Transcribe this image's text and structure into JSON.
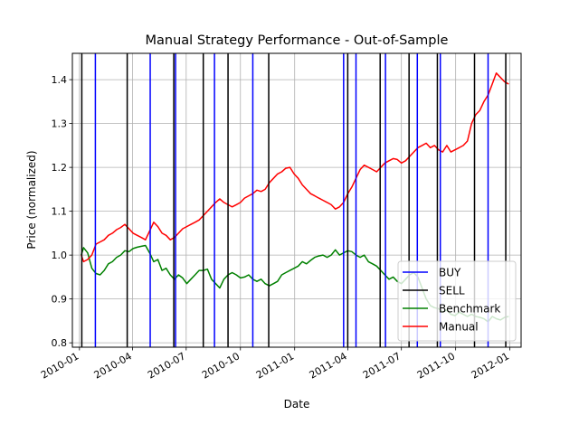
{
  "chart_data": {
    "type": "line",
    "title": "Manual Strategy Performance - Out-of-Sample",
    "xlabel": "Date",
    "ylabel": "Price (normalized)",
    "xlim": [
      "2009-12-20",
      "2012-01-20"
    ],
    "ylim": [
      0.79,
      1.46
    ],
    "grid": true,
    "legend_position": "lower-right",
    "x_ticks": [
      {
        "date": "2010-01-01",
        "label": "2010-01"
      },
      {
        "date": "2010-04-01",
        "label": "2010-04"
      },
      {
        "date": "2010-07-01",
        "label": "2010-07"
      },
      {
        "date": "2010-10-01",
        "label": "2010-10"
      },
      {
        "date": "2011-01-01",
        "label": "2011-01"
      },
      {
        "date": "2011-04-01",
        "label": "2011-04"
      },
      {
        "date": "2011-07-01",
        "label": "2011-07"
      },
      {
        "date": "2011-10-01",
        "label": "2011-10"
      },
      {
        "date": "2012-01-01",
        "label": "2012-01"
      }
    ],
    "y_ticks": [
      {
        "value": 0.8,
        "label": "0.8"
      },
      {
        "value": 0.9,
        "label": "0.9"
      },
      {
        "value": 1.0,
        "label": "1.0"
      },
      {
        "value": 1.1,
        "label": "1.1"
      },
      {
        "value": 1.2,
        "label": "1.2"
      },
      {
        "value": 1.3,
        "label": "1.3"
      },
      {
        "value": 1.4,
        "label": "1.4"
      }
    ],
    "buy_dates": [
      "2010-01-28",
      "2010-05-01",
      "2010-06-13",
      "2010-08-18",
      "2010-10-22",
      "2011-03-25",
      "2011-04-15",
      "2011-06-04",
      "2011-07-28",
      "2011-09-05",
      "2011-11-25"
    ],
    "sell_dates": [
      "2010-01-05",
      "2010-03-23",
      "2010-06-10",
      "2010-07-30",
      "2010-09-10",
      "2010-11-18",
      "2011-04-01",
      "2011-05-26",
      "2011-07-14",
      "2011-08-31",
      "2011-11-02",
      "2011-12-25"
    ],
    "series": [
      {
        "name": "Benchmark",
        "color": "#008000",
        "points": [
          [
            "2010-01-04",
            1.0
          ],
          [
            "2010-01-08",
            1.017
          ],
          [
            "2010-01-15",
            1.005
          ],
          [
            "2010-01-22",
            0.97
          ],
          [
            "2010-01-29",
            0.958
          ],
          [
            "2010-02-05",
            0.955
          ],
          [
            "2010-02-12",
            0.965
          ],
          [
            "2010-02-19",
            0.98
          ],
          [
            "2010-02-26",
            0.985
          ],
          [
            "2010-03-05",
            0.995
          ],
          [
            "2010-03-12",
            1.0
          ],
          [
            "2010-03-19",
            1.01
          ],
          [
            "2010-03-26",
            1.008
          ],
          [
            "2010-04-02",
            1.015
          ],
          [
            "2010-04-09",
            1.018
          ],
          [
            "2010-04-16",
            1.02
          ],
          [
            "2010-04-23",
            1.022
          ],
          [
            "2010-04-30",
            1.005
          ],
          [
            "2010-05-07",
            0.985
          ],
          [
            "2010-05-14",
            0.99
          ],
          [
            "2010-05-21",
            0.965
          ],
          [
            "2010-05-28",
            0.97
          ],
          [
            "2010-06-04",
            0.955
          ],
          [
            "2010-06-11",
            0.945
          ],
          [
            "2010-06-18",
            0.955
          ],
          [
            "2010-06-25",
            0.948
          ],
          [
            "2010-07-02",
            0.935
          ],
          [
            "2010-07-09",
            0.945
          ],
          [
            "2010-07-16",
            0.955
          ],
          [
            "2010-07-23",
            0.965
          ],
          [
            "2010-07-30",
            0.965
          ],
          [
            "2010-08-06",
            0.968
          ],
          [
            "2010-08-13",
            0.945
          ],
          [
            "2010-08-20",
            0.935
          ],
          [
            "2010-08-27",
            0.925
          ],
          [
            "2010-09-03",
            0.945
          ],
          [
            "2010-09-10",
            0.955
          ],
          [
            "2010-09-17",
            0.96
          ],
          [
            "2010-09-24",
            0.955
          ],
          [
            "2010-10-01",
            0.948
          ],
          [
            "2010-10-08",
            0.95
          ],
          [
            "2010-10-15",
            0.955
          ],
          [
            "2010-10-22",
            0.945
          ],
          [
            "2010-10-29",
            0.94
          ],
          [
            "2010-11-05",
            0.945
          ],
          [
            "2010-11-12",
            0.935
          ],
          [
            "2010-11-19",
            0.93
          ],
          [
            "2010-11-26",
            0.935
          ],
          [
            "2010-12-03",
            0.94
          ],
          [
            "2010-12-10",
            0.955
          ],
          [
            "2010-12-17",
            0.96
          ],
          [
            "2010-12-24",
            0.965
          ],
          [
            "2010-12-31",
            0.97
          ],
          [
            "2011-01-07",
            0.975
          ],
          [
            "2011-01-14",
            0.985
          ],
          [
            "2011-01-21",
            0.98
          ],
          [
            "2011-01-28",
            0.988
          ],
          [
            "2011-02-04",
            0.995
          ],
          [
            "2011-02-11",
            0.998
          ],
          [
            "2011-02-18",
            1.0
          ],
          [
            "2011-02-25",
            0.995
          ],
          [
            "2011-03-04",
            1.0
          ],
          [
            "2011-03-11",
            1.012
          ],
          [
            "2011-03-18",
            1.0
          ],
          [
            "2011-03-25",
            1.005
          ],
          [
            "2011-04-01",
            1.01
          ],
          [
            "2011-04-08",
            1.008
          ],
          [
            "2011-04-15",
            1.0
          ],
          [
            "2011-04-22",
            0.995
          ],
          [
            "2011-04-29",
            1.0
          ],
          [
            "2011-05-06",
            0.985
          ],
          [
            "2011-05-13",
            0.98
          ],
          [
            "2011-05-20",
            0.975
          ],
          [
            "2011-05-27",
            0.965
          ],
          [
            "2011-06-03",
            0.955
          ],
          [
            "2011-06-10",
            0.945
          ],
          [
            "2011-06-17",
            0.95
          ],
          [
            "2011-06-24",
            0.94
          ],
          [
            "2011-07-01",
            0.935
          ],
          [
            "2011-07-08",
            0.945
          ],
          [
            "2011-07-15",
            0.955
          ],
          [
            "2011-07-22",
            0.96
          ],
          [
            "2011-07-29",
            0.95
          ],
          [
            "2011-08-05",
            0.925
          ],
          [
            "2011-08-12",
            0.9
          ],
          [
            "2011-08-19",
            0.885
          ],
          [
            "2011-08-26",
            0.88
          ],
          [
            "2011-09-02",
            0.878
          ],
          [
            "2011-09-09",
            0.87
          ],
          [
            "2011-09-16",
            0.875
          ],
          [
            "2011-09-23",
            0.865
          ],
          [
            "2011-09-30",
            0.862
          ],
          [
            "2011-10-07",
            0.87
          ],
          [
            "2011-10-14",
            0.865
          ],
          [
            "2011-10-21",
            0.86
          ],
          [
            "2011-10-28",
            0.865
          ],
          [
            "2011-11-04",
            0.86
          ],
          [
            "2011-11-11",
            0.858
          ],
          [
            "2011-11-18",
            0.855
          ],
          [
            "2011-11-25",
            0.848
          ],
          [
            "2011-12-02",
            0.86
          ],
          [
            "2011-12-09",
            0.855
          ],
          [
            "2011-12-16",
            0.852
          ],
          [
            "2011-12-23",
            0.858
          ],
          [
            "2011-12-30",
            0.86
          ]
        ]
      },
      {
        "name": "Manual",
        "color": "#ff0000",
        "points": [
          [
            "2010-01-04",
            1.0
          ],
          [
            "2010-01-08",
            0.985
          ],
          [
            "2010-01-15",
            0.99
          ],
          [
            "2010-01-22",
            1.0
          ],
          [
            "2010-01-29",
            1.025
          ],
          [
            "2010-02-05",
            1.03
          ],
          [
            "2010-02-12",
            1.035
          ],
          [
            "2010-02-19",
            1.045
          ],
          [
            "2010-02-26",
            1.05
          ],
          [
            "2010-03-05",
            1.058
          ],
          [
            "2010-03-12",
            1.063
          ],
          [
            "2010-03-19",
            1.07
          ],
          [
            "2010-03-26",
            1.06
          ],
          [
            "2010-04-02",
            1.05
          ],
          [
            "2010-04-09",
            1.045
          ],
          [
            "2010-04-16",
            1.04
          ],
          [
            "2010-04-23",
            1.035
          ],
          [
            "2010-04-30",
            1.055
          ],
          [
            "2010-05-07",
            1.075
          ],
          [
            "2010-05-14",
            1.065
          ],
          [
            "2010-05-21",
            1.05
          ],
          [
            "2010-05-28",
            1.045
          ],
          [
            "2010-06-04",
            1.035
          ],
          [
            "2010-06-11",
            1.04
          ],
          [
            "2010-06-18",
            1.05
          ],
          [
            "2010-06-25",
            1.06
          ],
          [
            "2010-07-02",
            1.065
          ],
          [
            "2010-07-09",
            1.07
          ],
          [
            "2010-07-16",
            1.075
          ],
          [
            "2010-07-23",
            1.08
          ],
          [
            "2010-07-30",
            1.09
          ],
          [
            "2010-08-06",
            1.1
          ],
          [
            "2010-08-13",
            1.11
          ],
          [
            "2010-08-20",
            1.12
          ],
          [
            "2010-08-27",
            1.128
          ],
          [
            "2010-09-03",
            1.12
          ],
          [
            "2010-09-10",
            1.115
          ],
          [
            "2010-09-17",
            1.11
          ],
          [
            "2010-09-24",
            1.115
          ],
          [
            "2010-10-01",
            1.12
          ],
          [
            "2010-10-08",
            1.13
          ],
          [
            "2010-10-15",
            1.135
          ],
          [
            "2010-10-22",
            1.14
          ],
          [
            "2010-10-29",
            1.148
          ],
          [
            "2010-11-05",
            1.145
          ],
          [
            "2010-11-12",
            1.15
          ],
          [
            "2010-11-19",
            1.165
          ],
          [
            "2010-11-26",
            1.175
          ],
          [
            "2010-12-03",
            1.185
          ],
          [
            "2010-12-10",
            1.19
          ],
          [
            "2010-12-17",
            1.198
          ],
          [
            "2010-12-24",
            1.2
          ],
          [
            "2010-12-31",
            1.185
          ],
          [
            "2011-01-07",
            1.175
          ],
          [
            "2011-01-14",
            1.16
          ],
          [
            "2011-01-21",
            1.15
          ],
          [
            "2011-01-28",
            1.14
          ],
          [
            "2011-02-04",
            1.135
          ],
          [
            "2011-02-11",
            1.13
          ],
          [
            "2011-02-18",
            1.125
          ],
          [
            "2011-02-25",
            1.12
          ],
          [
            "2011-03-04",
            1.115
          ],
          [
            "2011-03-11",
            1.105
          ],
          [
            "2011-03-18",
            1.11
          ],
          [
            "2011-03-25",
            1.12
          ],
          [
            "2011-04-01",
            1.14
          ],
          [
            "2011-04-08",
            1.155
          ],
          [
            "2011-04-15",
            1.175
          ],
          [
            "2011-04-22",
            1.195
          ],
          [
            "2011-04-29",
            1.205
          ],
          [
            "2011-05-06",
            1.2
          ],
          [
            "2011-05-13",
            1.195
          ],
          [
            "2011-05-20",
            1.19
          ],
          [
            "2011-05-27",
            1.2
          ],
          [
            "2011-06-03",
            1.21
          ],
          [
            "2011-06-10",
            1.215
          ],
          [
            "2011-06-17",
            1.22
          ],
          [
            "2011-06-24",
            1.218
          ],
          [
            "2011-07-01",
            1.21
          ],
          [
            "2011-07-08",
            1.215
          ],
          [
            "2011-07-15",
            1.225
          ],
          [
            "2011-07-22",
            1.235
          ],
          [
            "2011-07-29",
            1.245
          ],
          [
            "2011-08-05",
            1.25
          ],
          [
            "2011-08-12",
            1.255
          ],
          [
            "2011-08-19",
            1.245
          ],
          [
            "2011-08-26",
            1.25
          ],
          [
            "2011-09-02",
            1.24
          ],
          [
            "2011-09-09",
            1.235
          ],
          [
            "2011-09-16",
            1.25
          ],
          [
            "2011-09-23",
            1.235
          ],
          [
            "2011-09-30",
            1.24
          ],
          [
            "2011-10-07",
            1.245
          ],
          [
            "2011-10-14",
            1.25
          ],
          [
            "2011-10-21",
            1.26
          ],
          [
            "2011-10-28",
            1.3
          ],
          [
            "2011-11-04",
            1.32
          ],
          [
            "2011-11-11",
            1.33
          ],
          [
            "2011-11-18",
            1.35
          ],
          [
            "2011-11-25",
            1.365
          ],
          [
            "2011-12-02",
            1.39
          ],
          [
            "2011-12-09",
            1.415
          ],
          [
            "2011-12-16",
            1.405
          ],
          [
            "2011-12-23",
            1.395
          ],
          [
            "2011-12-30",
            1.39
          ]
        ]
      }
    ],
    "legend": [
      {
        "label": "BUY",
        "color": "#0000ff"
      },
      {
        "label": "SELL",
        "color": "#000000"
      },
      {
        "label": "Benchmark",
        "color": "#008000"
      },
      {
        "label": "Manual",
        "color": "#ff0000"
      }
    ]
  }
}
